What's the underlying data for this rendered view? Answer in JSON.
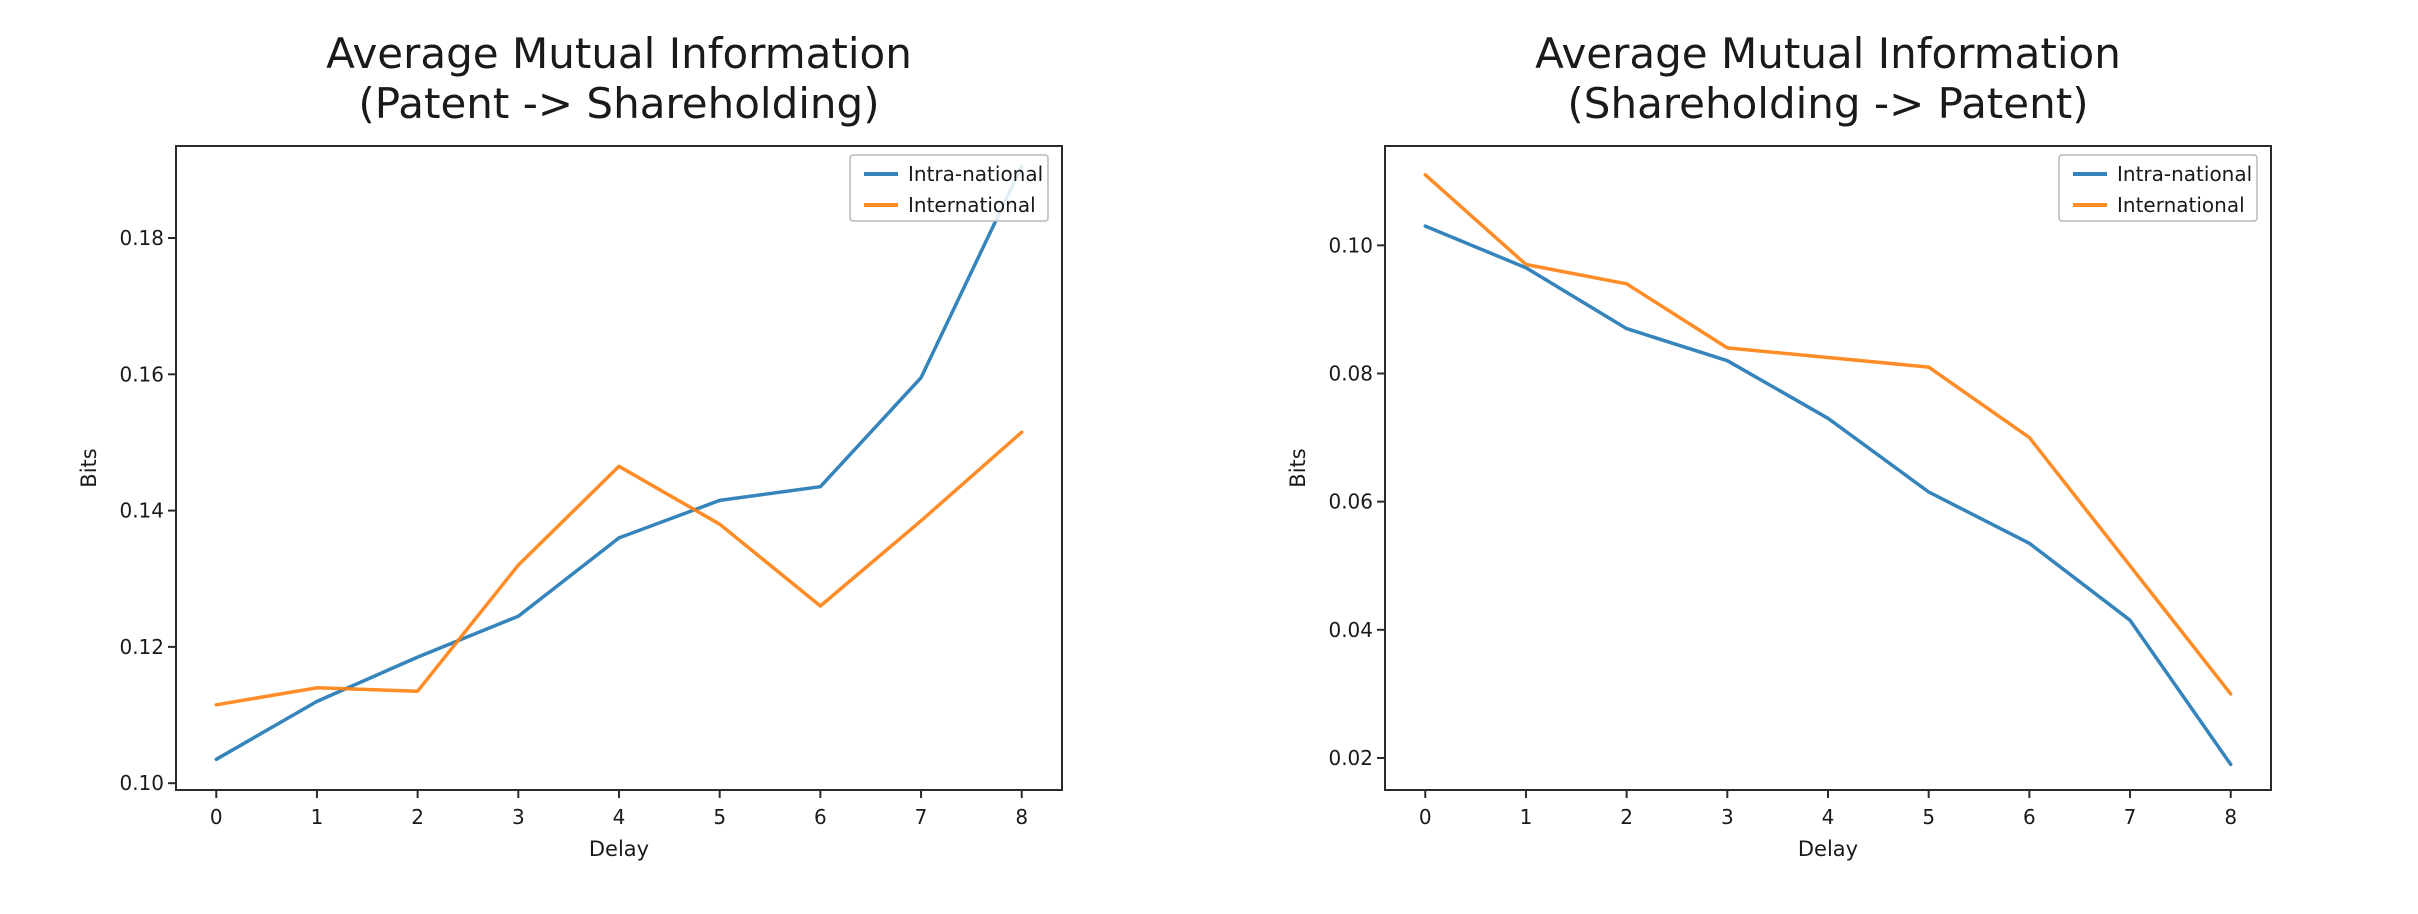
{
  "page": {
    "background": "#ffffff"
  },
  "colors": {
    "intra_national": "rgba(31,119,180,0.9)",
    "international": "rgba(255,127,14,0.9)",
    "axis": "#2b2b2b",
    "text": "#1a1a1a",
    "legend_border": "#b8b8b8",
    "legend_bg": "rgba(255,255,255,0.85)"
  },
  "chart_data": [
    {
      "type": "line",
      "title_line1": "Average Mutual Information",
      "title_line2": "(Patent -> Shareholding)",
      "xlabel": "Delay",
      "ylabel": "Bits",
      "x": [
        0,
        1,
        2,
        3,
        4,
        5,
        6,
        7,
        8
      ],
      "xtick_labels": [
        "0",
        "1",
        "2",
        "3",
        "4",
        "5",
        "6",
        "7",
        "8"
      ],
      "yticks": [
        0.1,
        0.12,
        0.14,
        0.16,
        0.18
      ],
      "ytick_labels": [
        "0.10",
        "0.12",
        "0.14",
        "0.16",
        "0.18"
      ],
      "xlim": [
        -0.4,
        8.4
      ],
      "ylim": [
        0.099,
        0.1935
      ],
      "grid": false,
      "legend_position": "upper right",
      "series": [
        {
          "name": "Intra-national",
          "color_key": "intra_national",
          "values": [
            0.1035,
            0.112,
            0.1185,
            0.1245,
            0.136,
            0.1415,
            0.1435,
            0.1595,
            0.1905
          ]
        },
        {
          "name": "International",
          "color_key": "international",
          "values": [
            0.1115,
            0.114,
            0.1135,
            0.132,
            0.1465,
            0.138,
            0.126,
            0.1385,
            0.1515
          ]
        }
      ]
    },
    {
      "type": "line",
      "title_line1": "Average Mutual Information",
      "title_line2": "(Shareholding -> Patent)",
      "xlabel": "Delay",
      "ylabel": "Bits",
      "x": [
        0,
        1,
        2,
        3,
        4,
        5,
        6,
        7,
        8
      ],
      "xtick_labels": [
        "0",
        "1",
        "2",
        "3",
        "4",
        "5",
        "6",
        "7",
        "8"
      ],
      "yticks": [
        0.02,
        0.04,
        0.06,
        0.08,
        0.1
      ],
      "ytick_labels": [
        "0.02",
        "0.04",
        "0.06",
        "0.08",
        "0.10"
      ],
      "xlim": [
        -0.4,
        8.4
      ],
      "ylim": [
        0.015,
        0.1155
      ],
      "grid": false,
      "legend_position": "upper right",
      "series": [
        {
          "name": "Intra-national",
          "color_key": "intra_national",
          "values": [
            0.103,
            0.0965,
            0.087,
            0.082,
            0.073,
            0.0615,
            0.0535,
            0.0415,
            0.019
          ]
        },
        {
          "name": "International",
          "color_key": "international",
          "values": [
            0.111,
            0.097,
            0.094,
            0.084,
            0.0825,
            0.081,
            0.07,
            0.05,
            0.03
          ]
        }
      ]
    }
  ]
}
